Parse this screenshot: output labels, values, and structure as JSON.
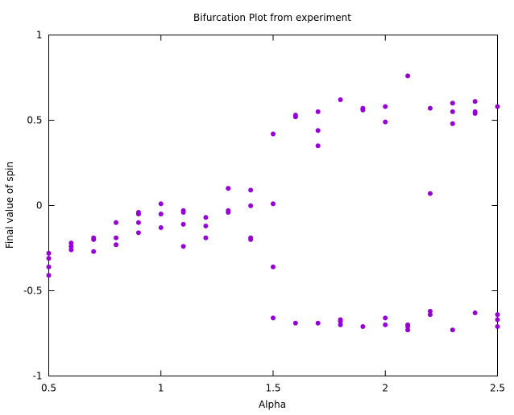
{
  "chart_data": {
    "type": "scatter",
    "title": "Bifurcation Plot from experiment",
    "xlabel": "Alpha",
    "ylabel": "Final value of spin",
    "xlim": [
      0.5,
      2.5
    ],
    "ylim": [
      -1,
      1
    ],
    "xticks": [
      0.5,
      1,
      1.5,
      2,
      2.5
    ],
    "xtick_labels": [
      "0.5",
      "1",
      "1.5",
      "2",
      "2.5"
    ],
    "yticks": [
      -1,
      -0.5,
      0,
      0.5,
      1
    ],
    "ytick_labels": [
      "-1",
      "-0.5",
      "0",
      "0.5",
      "1"
    ],
    "grid": false,
    "legend": "none",
    "marker_color": "#9400d3",
    "points": [
      [
        0.5,
        -0.28
      ],
      [
        0.5,
        -0.31
      ],
      [
        0.5,
        -0.36
      ],
      [
        0.5,
        -0.41
      ],
      [
        0.6,
        -0.22
      ],
      [
        0.6,
        -0.24
      ],
      [
        0.6,
        -0.26
      ],
      [
        0.7,
        -0.19
      ],
      [
        0.7,
        -0.2
      ],
      [
        0.7,
        -0.27
      ],
      [
        0.8,
        -0.1
      ],
      [
        0.8,
        -0.19
      ],
      [
        0.8,
        -0.23
      ],
      [
        0.9,
        -0.04
      ],
      [
        0.9,
        -0.05
      ],
      [
        0.9,
        -0.1
      ],
      [
        0.9,
        -0.16
      ],
      [
        1.0,
        0.01
      ],
      [
        1.0,
        -0.05
      ],
      [
        1.0,
        -0.13
      ],
      [
        1.1,
        -0.03
      ],
      [
        1.1,
        -0.04
      ],
      [
        1.1,
        -0.11
      ],
      [
        1.1,
        -0.24
      ],
      [
        1.2,
        -0.07
      ],
      [
        1.2,
        -0.12
      ],
      [
        1.2,
        -0.19
      ],
      [
        1.3,
        0.1
      ],
      [
        1.3,
        0.1
      ],
      [
        1.3,
        -0.03
      ],
      [
        1.3,
        -0.04
      ],
      [
        1.4,
        0.09
      ],
      [
        1.4,
        -0.002
      ],
      [
        1.4,
        -0.19
      ],
      [
        1.4,
        -0.2
      ],
      [
        1.5,
        0.42
      ],
      [
        1.5,
        0.01
      ],
      [
        1.5,
        -0.36
      ],
      [
        1.5,
        -0.66
      ],
      [
        1.6,
        0.53
      ],
      [
        1.6,
        0.52
      ],
      [
        1.6,
        -0.69
      ],
      [
        1.7,
        0.55
      ],
      [
        1.7,
        0.44
      ],
      [
        1.7,
        0.35
      ],
      [
        1.7,
        -0.69
      ],
      [
        1.8,
        0.62
      ],
      [
        1.8,
        -0.67
      ],
      [
        1.8,
        -0.68
      ],
      [
        1.8,
        -0.7
      ],
      [
        1.9,
        0.57
      ],
      [
        1.9,
        0.56
      ],
      [
        1.9,
        -0.71
      ],
      [
        2.0,
        0.58
      ],
      [
        2.0,
        0.49
      ],
      [
        2.0,
        -0.66
      ],
      [
        2.0,
        -0.7
      ],
      [
        2.1,
        0.76
      ],
      [
        2.1,
        -0.7
      ],
      [
        2.1,
        -0.71
      ],
      [
        2.1,
        -0.73
      ],
      [
        2.2,
        0.57
      ],
      [
        2.2,
        0.07
      ],
      [
        2.2,
        -0.62
      ],
      [
        2.2,
        -0.64
      ],
      [
        2.3,
        0.6
      ],
      [
        2.3,
        0.55
      ],
      [
        2.3,
        0.48
      ],
      [
        2.3,
        -0.73
      ],
      [
        2.4,
        0.61
      ],
      [
        2.4,
        0.55
      ],
      [
        2.4,
        0.54
      ],
      [
        2.4,
        -0.63
      ],
      [
        2.5,
        0.58
      ],
      [
        2.5,
        -0.64
      ],
      [
        2.5,
        -0.67
      ],
      [
        2.5,
        -0.71
      ]
    ]
  }
}
